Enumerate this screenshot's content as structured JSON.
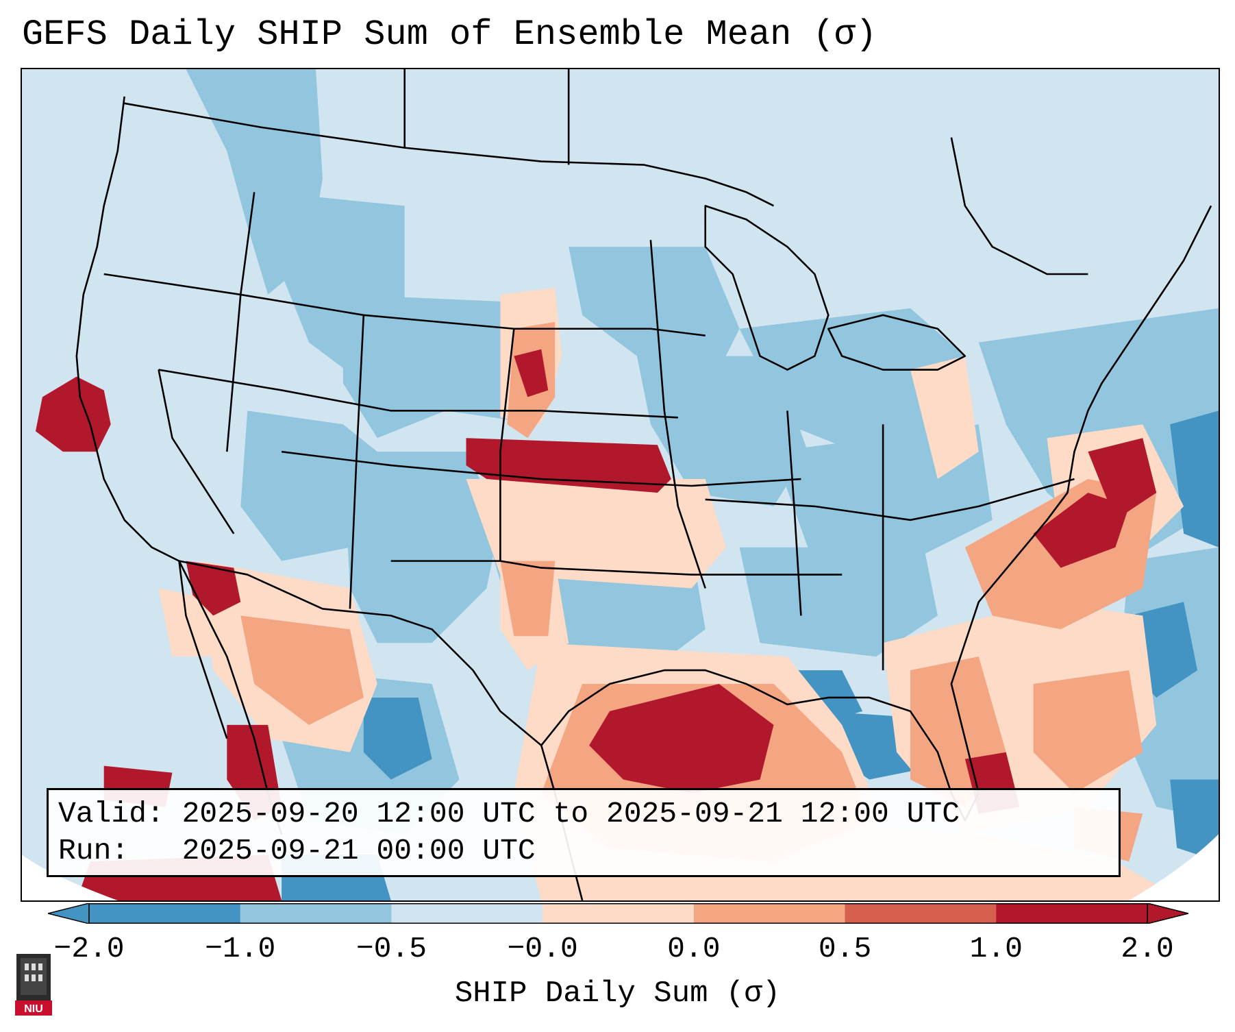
{
  "title": "GEFS Daily SHIP Sum of Ensemble Mean (σ)",
  "info": {
    "valid_line": "Valid: 2025-09-20 12:00 UTC to 2025-09-21 12:00 UTC",
    "run_line": "Run:   2025-09-21 00:00 UTC"
  },
  "colorbar": {
    "label": "SHIP Daily Sum (σ)",
    "ticks": [
      "−2.0",
      "−1.0",
      "−0.5",
      "−0.0",
      "0.0",
      "0.5",
      "1.0",
      "2.0"
    ],
    "colors": [
      "#4393c3",
      "#92c5de",
      "#d1e5f0",
      "#fddbc7",
      "#f4a582",
      "#d6604d",
      "#b2182b"
    ],
    "extend": "both"
  },
  "logo": {
    "text": "NIU",
    "color": "#c8102e"
  },
  "map": {
    "region": "Contiguous United States and northern Mexico",
    "background_color": "#d1e5f0",
    "outside_domain_color": "#ffffff"
  }
}
